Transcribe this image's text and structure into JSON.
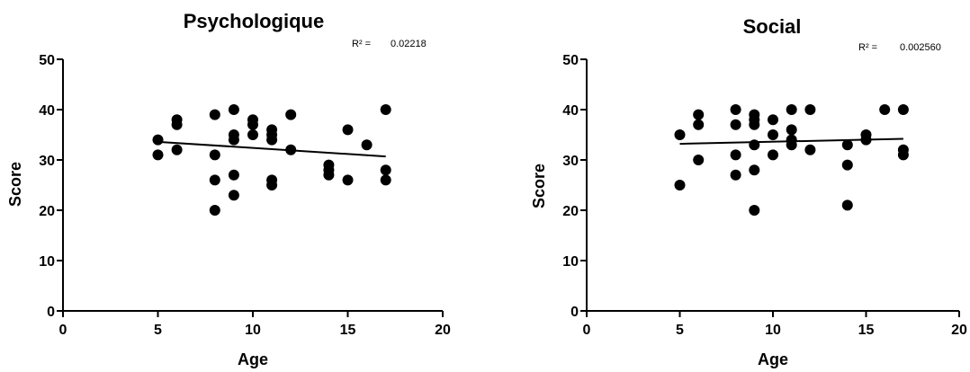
{
  "chart_data": [
    {
      "type": "scatter",
      "title": "Psychologique",
      "xlabel": "Age",
      "ylabel": "Score",
      "xlim": [
        0,
        20
      ],
      "ylim": [
        0,
        50
      ],
      "xticks": [
        "0",
        "5",
        "10",
        "15",
        "20"
      ],
      "yticks": [
        "0",
        "10",
        "20",
        "30",
        "40",
        "50"
      ],
      "r2_label": "R² =",
      "r2_value": "0.02218",
      "trendline": {
        "x": [
          5,
          17
        ],
        "y": [
          33.6,
          30.7
        ]
      },
      "grid": false,
      "points": [
        {
          "x": 5,
          "y": 34
        },
        {
          "x": 5,
          "y": 31
        },
        {
          "x": 6,
          "y": 38
        },
        {
          "x": 6,
          "y": 37
        },
        {
          "x": 6,
          "y": 32
        },
        {
          "x": 8,
          "y": 39
        },
        {
          "x": 8,
          "y": 31
        },
        {
          "x": 8,
          "y": 26
        },
        {
          "x": 8,
          "y": 20
        },
        {
          "x": 9,
          "y": 40
        },
        {
          "x": 9,
          "y": 35
        },
        {
          "x": 9,
          "y": 34
        },
        {
          "x": 9,
          "y": 27
        },
        {
          "x": 9,
          "y": 23
        },
        {
          "x": 10,
          "y": 38
        },
        {
          "x": 10,
          "y": 37
        },
        {
          "x": 10,
          "y": 35
        },
        {
          "x": 11,
          "y": 36
        },
        {
          "x": 11,
          "y": 35
        },
        {
          "x": 11,
          "y": 34
        },
        {
          "x": 11,
          "y": 26
        },
        {
          "x": 11,
          "y": 25
        },
        {
          "x": 12,
          "y": 39
        },
        {
          "x": 12,
          "y": 32
        },
        {
          "x": 14,
          "y": 29
        },
        {
          "x": 14,
          "y": 28
        },
        {
          "x": 14,
          "y": 27
        },
        {
          "x": 15,
          "y": 36
        },
        {
          "x": 15,
          "y": 26
        },
        {
          "x": 16,
          "y": 33
        },
        {
          "x": 17,
          "y": 40
        },
        {
          "x": 17,
          "y": 28
        },
        {
          "x": 17,
          "y": 26
        }
      ]
    },
    {
      "type": "scatter",
      "title": "Social",
      "xlabel": "Age",
      "ylabel": "Score",
      "xlim": [
        0,
        20
      ],
      "ylim": [
        0,
        50
      ],
      "xticks": [
        "0",
        "5",
        "10",
        "15",
        "20"
      ],
      "yticks": [
        "0",
        "10",
        "20",
        "30",
        "40",
        "50"
      ],
      "r2_label": "R² =",
      "r2_value": "0.002560",
      "trendline": {
        "x": [
          5,
          17
        ],
        "y": [
          33.2,
          34.2
        ]
      },
      "grid": false,
      "points": [
        {
          "x": 5,
          "y": 35
        },
        {
          "x": 5,
          "y": 25
        },
        {
          "x": 6,
          "y": 39
        },
        {
          "x": 6,
          "y": 37
        },
        {
          "x": 6,
          "y": 30
        },
        {
          "x": 8,
          "y": 40
        },
        {
          "x": 8,
          "y": 37
        },
        {
          "x": 8,
          "y": 31
        },
        {
          "x": 8,
          "y": 27
        },
        {
          "x": 9,
          "y": 39
        },
        {
          "x": 9,
          "y": 38
        },
        {
          "x": 9,
          "y": 37
        },
        {
          "x": 9,
          "y": 33
        },
        {
          "x": 9,
          "y": 28
        },
        {
          "x": 9,
          "y": 20
        },
        {
          "x": 10,
          "y": 38
        },
        {
          "x": 10,
          "y": 35
        },
        {
          "x": 10,
          "y": 31
        },
        {
          "x": 11,
          "y": 40
        },
        {
          "x": 11,
          "y": 36
        },
        {
          "x": 11,
          "y": 34
        },
        {
          "x": 11,
          "y": 33
        },
        {
          "x": 12,
          "y": 40
        },
        {
          "x": 12,
          "y": 32
        },
        {
          "x": 14,
          "y": 33
        },
        {
          "x": 14,
          "y": 29
        },
        {
          "x": 14,
          "y": 21
        },
        {
          "x": 15,
          "y": 35
        },
        {
          "x": 15,
          "y": 34
        },
        {
          "x": 16,
          "y": 40
        },
        {
          "x": 17,
          "y": 40
        },
        {
          "x": 17,
          "y": 32
        },
        {
          "x": 17,
          "y": 31
        }
      ]
    }
  ]
}
